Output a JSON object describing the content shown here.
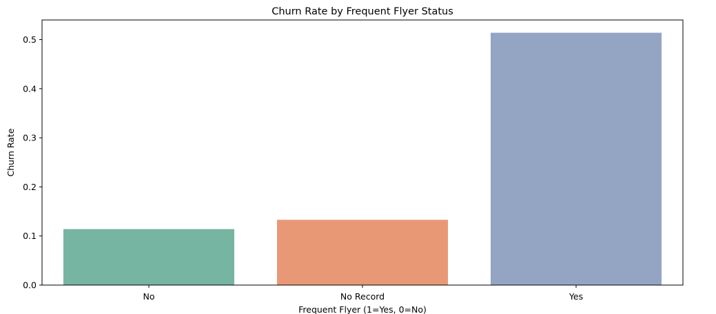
{
  "chart_data": {
    "type": "bar",
    "title": "Churn Rate by Frequent Flyer Status",
    "xlabel": "Frequent Flyer (1=Yes, 0=No)",
    "ylabel": "Churn Rate",
    "categories": [
      "No",
      "No Record",
      "Yes"
    ],
    "values": [
      0.114,
      0.133,
      0.514
    ],
    "colors": [
      "#75b5a1",
      "#e99875",
      "#94a4c3"
    ],
    "ylim": [
      0,
      0.54
    ],
    "yticks": [
      0.0,
      0.1,
      0.2,
      0.3,
      0.4,
      0.5
    ],
    "ytick_labels": [
      "0.0",
      "0.1",
      "0.2",
      "0.3",
      "0.4",
      "0.5"
    ],
    "grid": false,
    "legend": "none"
  }
}
